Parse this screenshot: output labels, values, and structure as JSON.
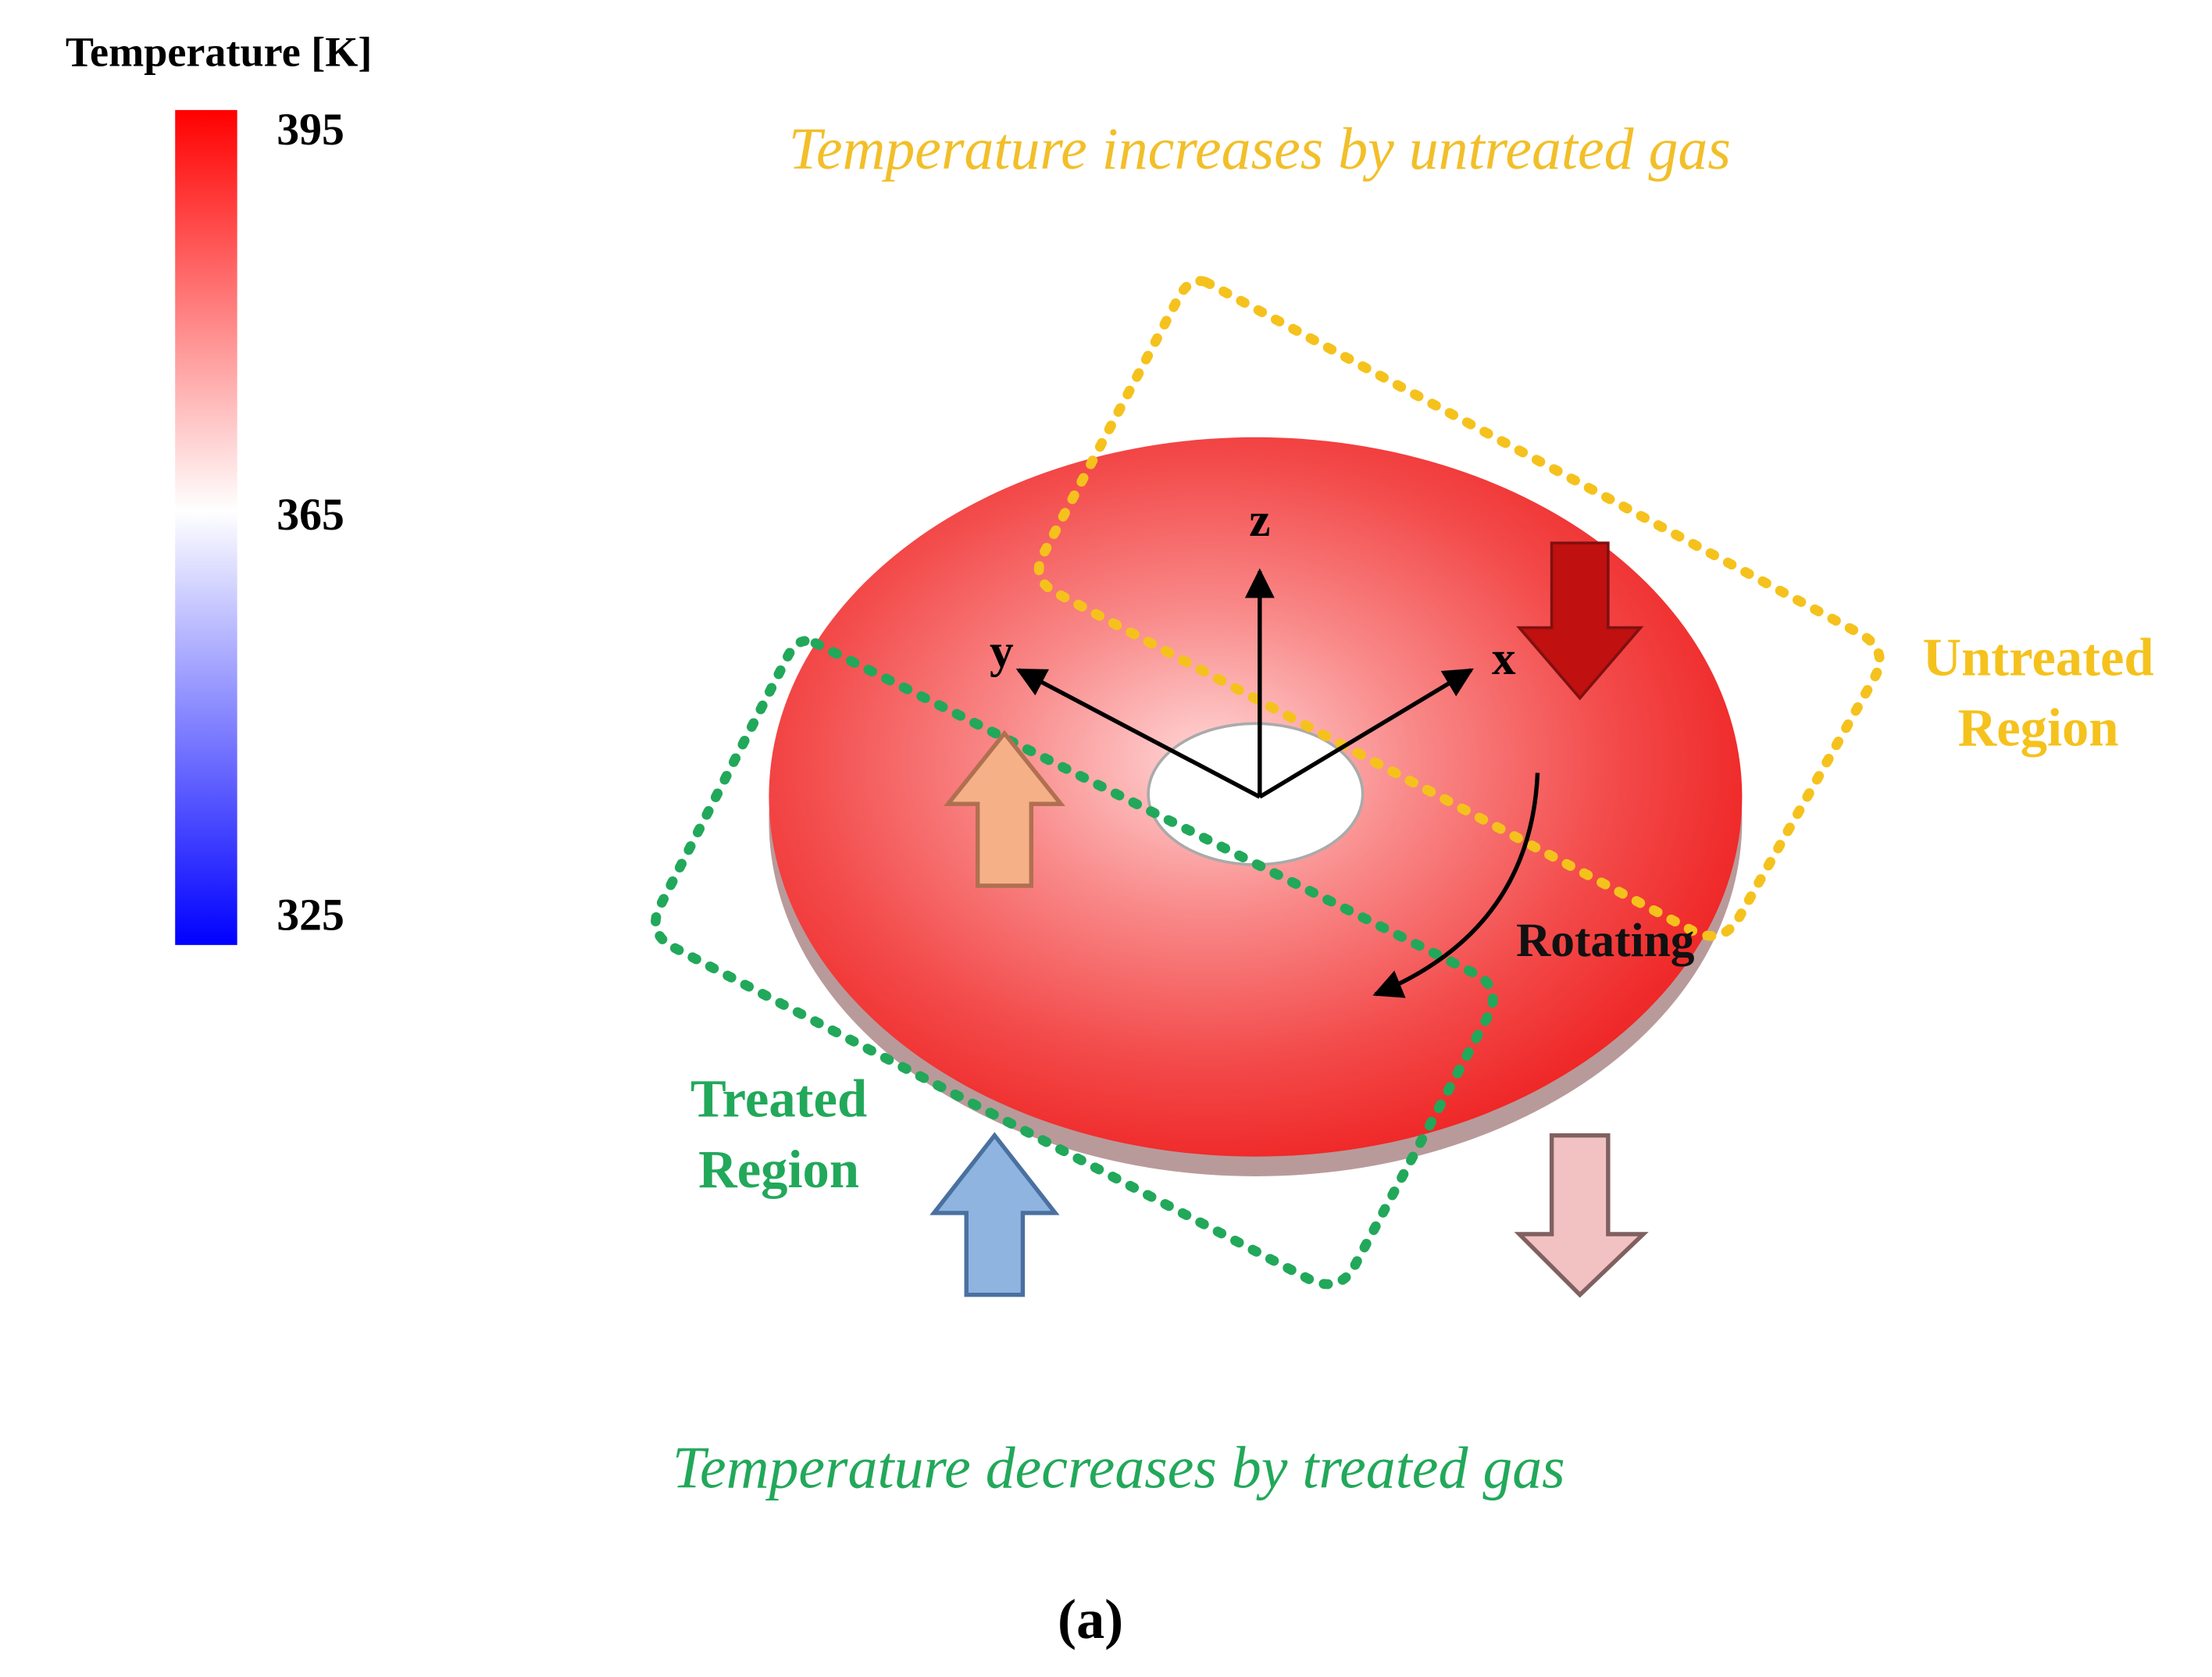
{
  "colorbar": {
    "title": "Temperature [K]",
    "labels": [
      395,
      365,
      325
    ]
  },
  "annotations": {
    "top": "Temperature  increases by untreated gas",
    "bottom": "Temperature  decreases by treated gas"
  },
  "regions": {
    "untreated": [
      "Untreated",
      "Region"
    ],
    "treated": [
      "Treated",
      "Region"
    ]
  },
  "axes": {
    "z": "z",
    "y": "y",
    "x": "x"
  },
  "rotation": "Rotating",
  "caption": "(a)"
}
